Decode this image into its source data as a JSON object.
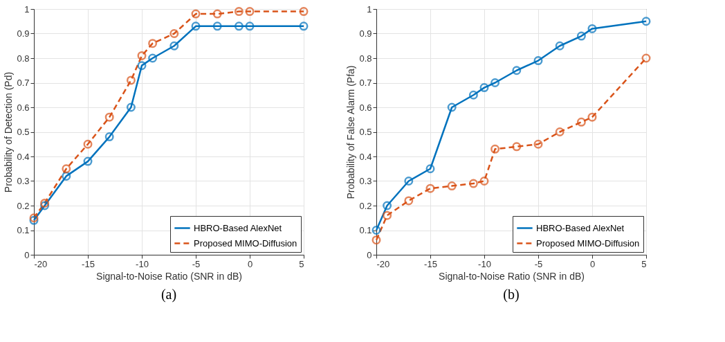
{
  "chart_data": [
    {
      "type": "line",
      "xlabel": "Signal-to-Noise Ratio (SNR in dB)",
      "ylabel": "Probability of Detection (Pd)",
      "annotations": [
        "(a)"
      ],
      "xlim": [
        -20,
        5
      ],
      "xticks": [
        -20,
        -15,
        -10,
        -5,
        0,
        5
      ],
      "ylim": [
        0,
        1
      ],
      "yticks": [
        0,
        0.1,
        0.2,
        0.3,
        0.4,
        0.5,
        0.6,
        0.7,
        0.8,
        0.9,
        1
      ],
      "grid": true,
      "legend": "bottom right",
      "marker": "circle",
      "x": [
        -20,
        -19,
        -17,
        -15,
        -13,
        -11,
        -10,
        -9,
        -7,
        -5,
        -3,
        -1,
        0,
        5
      ],
      "series": [
        {
          "name": "HBRO-Based AlexNet",
          "color": "#0072bd",
          "line_style": "solid",
          "values": [
            0.14,
            0.2,
            0.32,
            0.38,
            0.48,
            0.6,
            0.77,
            0.8,
            0.85,
            0.93,
            0.93,
            0.93,
            0.93,
            0.93
          ]
        },
        {
          "name": "Proposed MIMO-Diffusion",
          "color": "#d95319",
          "line_style": "dashed",
          "values": [
            0.15,
            0.21,
            0.35,
            0.45,
            0.56,
            0.71,
            0.81,
            0.86,
            0.9,
            0.98,
            0.98,
            0.99,
            0.99,
            0.99
          ]
        }
      ]
    },
    {
      "type": "line",
      "xlabel": "Signal-to-Noise Ratio (SNR in dB)",
      "ylabel": "Probability of False Alarm (Pfa)",
      "annotations": [
        "(b)"
      ],
      "xlim": [
        -20,
        5
      ],
      "xticks": [
        -20,
        -15,
        -10,
        -5,
        0,
        5
      ],
      "ylim": [
        0,
        1
      ],
      "yticks": [
        0,
        0.1,
        0.2,
        0.3,
        0.4,
        0.5,
        0.6,
        0.7,
        0.8,
        0.9,
        1
      ],
      "grid": true,
      "legend": "bottom right",
      "marker": "circle",
      "x": [
        -20,
        -19,
        -17,
        -15,
        -13,
        -11,
        -10,
        -9,
        -7,
        -5,
        -3,
        -1,
        0,
        5
      ],
      "series": [
        {
          "name": "HBRO-Based AlexNet",
          "color": "#0072bd",
          "line_style": "solid",
          "values": [
            0.1,
            0.2,
            0.3,
            0.35,
            0.6,
            0.65,
            0.68,
            0.7,
            0.75,
            0.79,
            0.85,
            0.89,
            0.92,
            0.95
          ]
        },
        {
          "name": "Proposed MIMO-Diffusion",
          "color": "#d95319",
          "line_style": "dashed",
          "values": [
            0.06,
            0.16,
            0.22,
            0.27,
            0.28,
            0.29,
            0.3,
            0.43,
            0.44,
            0.45,
            0.5,
            0.54,
            0.56,
            0.8
          ]
        }
      ]
    }
  ]
}
